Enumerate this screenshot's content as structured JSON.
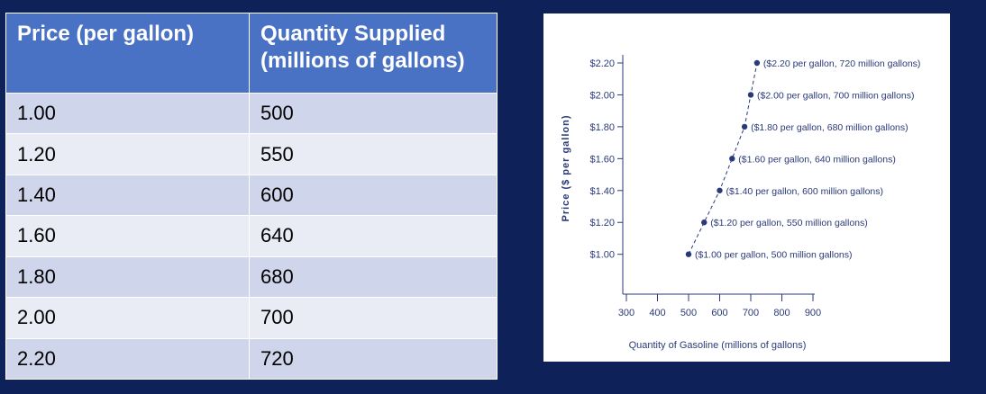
{
  "table": {
    "headers": [
      "Price (per gallon)",
      "Quantity Supplied (millions of gallons)"
    ],
    "rows": [
      [
        "1.00",
        "500"
      ],
      [
        "1.20",
        "550"
      ],
      [
        "1.40",
        "600"
      ],
      [
        "1.60",
        "640"
      ],
      [
        "1.80",
        "680"
      ],
      [
        "2.00",
        "700"
      ],
      [
        "2.20",
        "720"
      ]
    ]
  },
  "chart_data": {
    "type": "line",
    "xlabel": "Quantity of Gasoline (millions of gallons)",
    "ylabel": "Price ($ per gallon)",
    "x_ticks": [
      "300",
      "400",
      "500",
      "600",
      "700",
      "800",
      "900"
    ],
    "y_ticks": [
      "$1.00",
      "$1.20",
      "$1.40",
      "$1.60",
      "$1.80",
      "$2.00",
      "$2.20"
    ],
    "xlim": [
      300,
      900
    ],
    "ylim": [
      0.75,
      2.2
    ],
    "x": [
      500,
      550,
      600,
      640,
      680,
      700,
      720
    ],
    "y": [
      1.0,
      1.2,
      1.4,
      1.6,
      1.8,
      2.0,
      2.2
    ],
    "point_labels": [
      "($1.00 per gallon, 500 million gallons)",
      "($1.20 per gallon, 550 million gallons)",
      "($1.40 per gallon, 600 million gallons)",
      "($1.60 per gallon, 640 million gallons)",
      "($1.80 per gallon, 680 million gallons)",
      "($2.00 per gallon, 700 million gallons)",
      "($2.20 per gallon, 720 million gallons)"
    ],
    "color": "#2a3a78",
    "grid": false
  },
  "colors": {
    "background": "#0f2159",
    "header_fill": "#4a72c4",
    "row_odd": "#cfd5ea",
    "row_even": "#e9ebf5"
  }
}
